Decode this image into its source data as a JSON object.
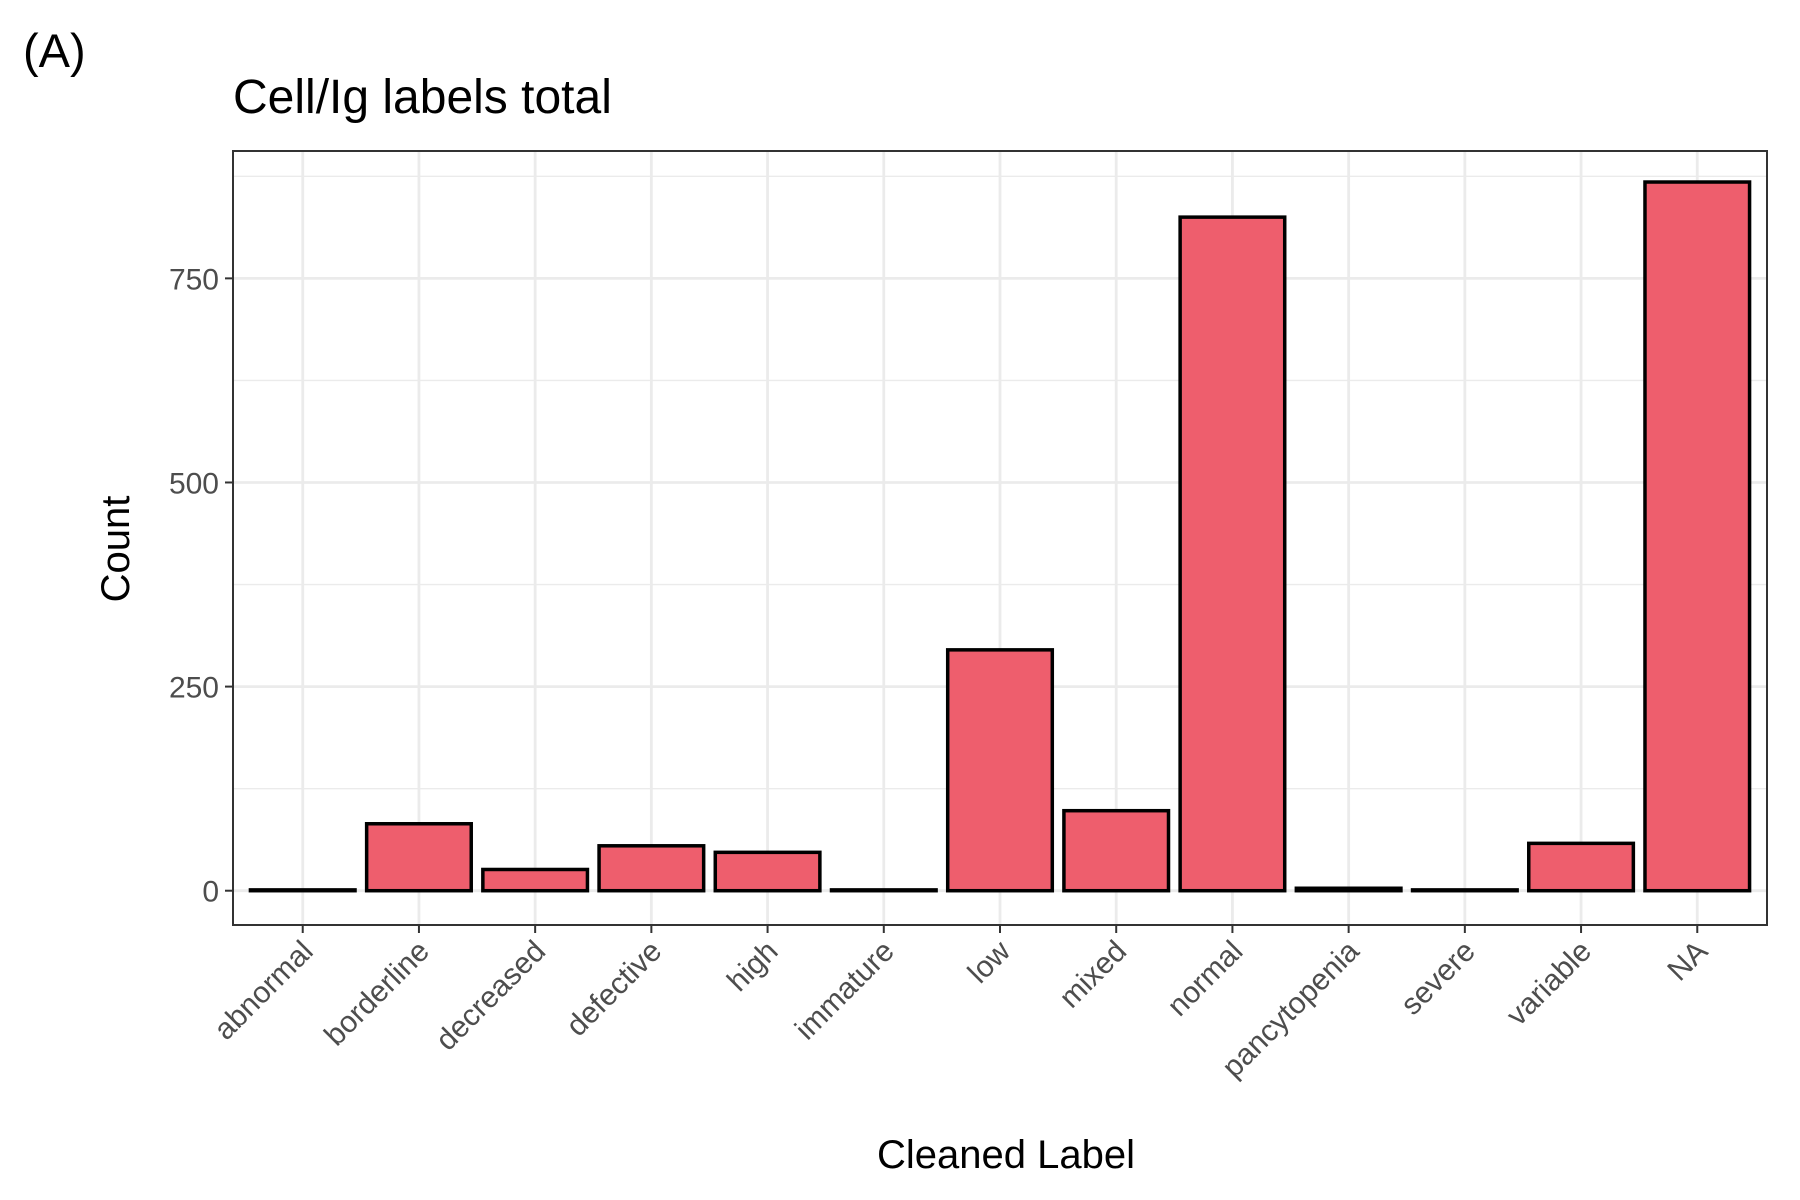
{
  "panel_tag": "(A)",
  "chart_data": {
    "type": "bar",
    "title": "Cell/Ig labels total",
    "xlabel": "Cleaned Label",
    "ylabel": "Count",
    "categories": [
      "abnormal",
      "borderline",
      "decreased",
      "defective",
      "high",
      "immature",
      "low",
      "mixed",
      "normal",
      "pancytopenia",
      "severe",
      "variable",
      "NA"
    ],
    "values": [
      1,
      82,
      26,
      55,
      47,
      1,
      295,
      98,
      825,
      3,
      1,
      58,
      868
    ],
    "ylim": [
      -42,
      906
    ],
    "yticks": [
      0,
      250,
      500,
      750
    ],
    "yticks_minor": [
      125,
      375,
      625,
      875
    ],
    "bar_color": "#ee5e6d",
    "bar_outline": "#000000",
    "grid": true,
    "legend": "none"
  }
}
